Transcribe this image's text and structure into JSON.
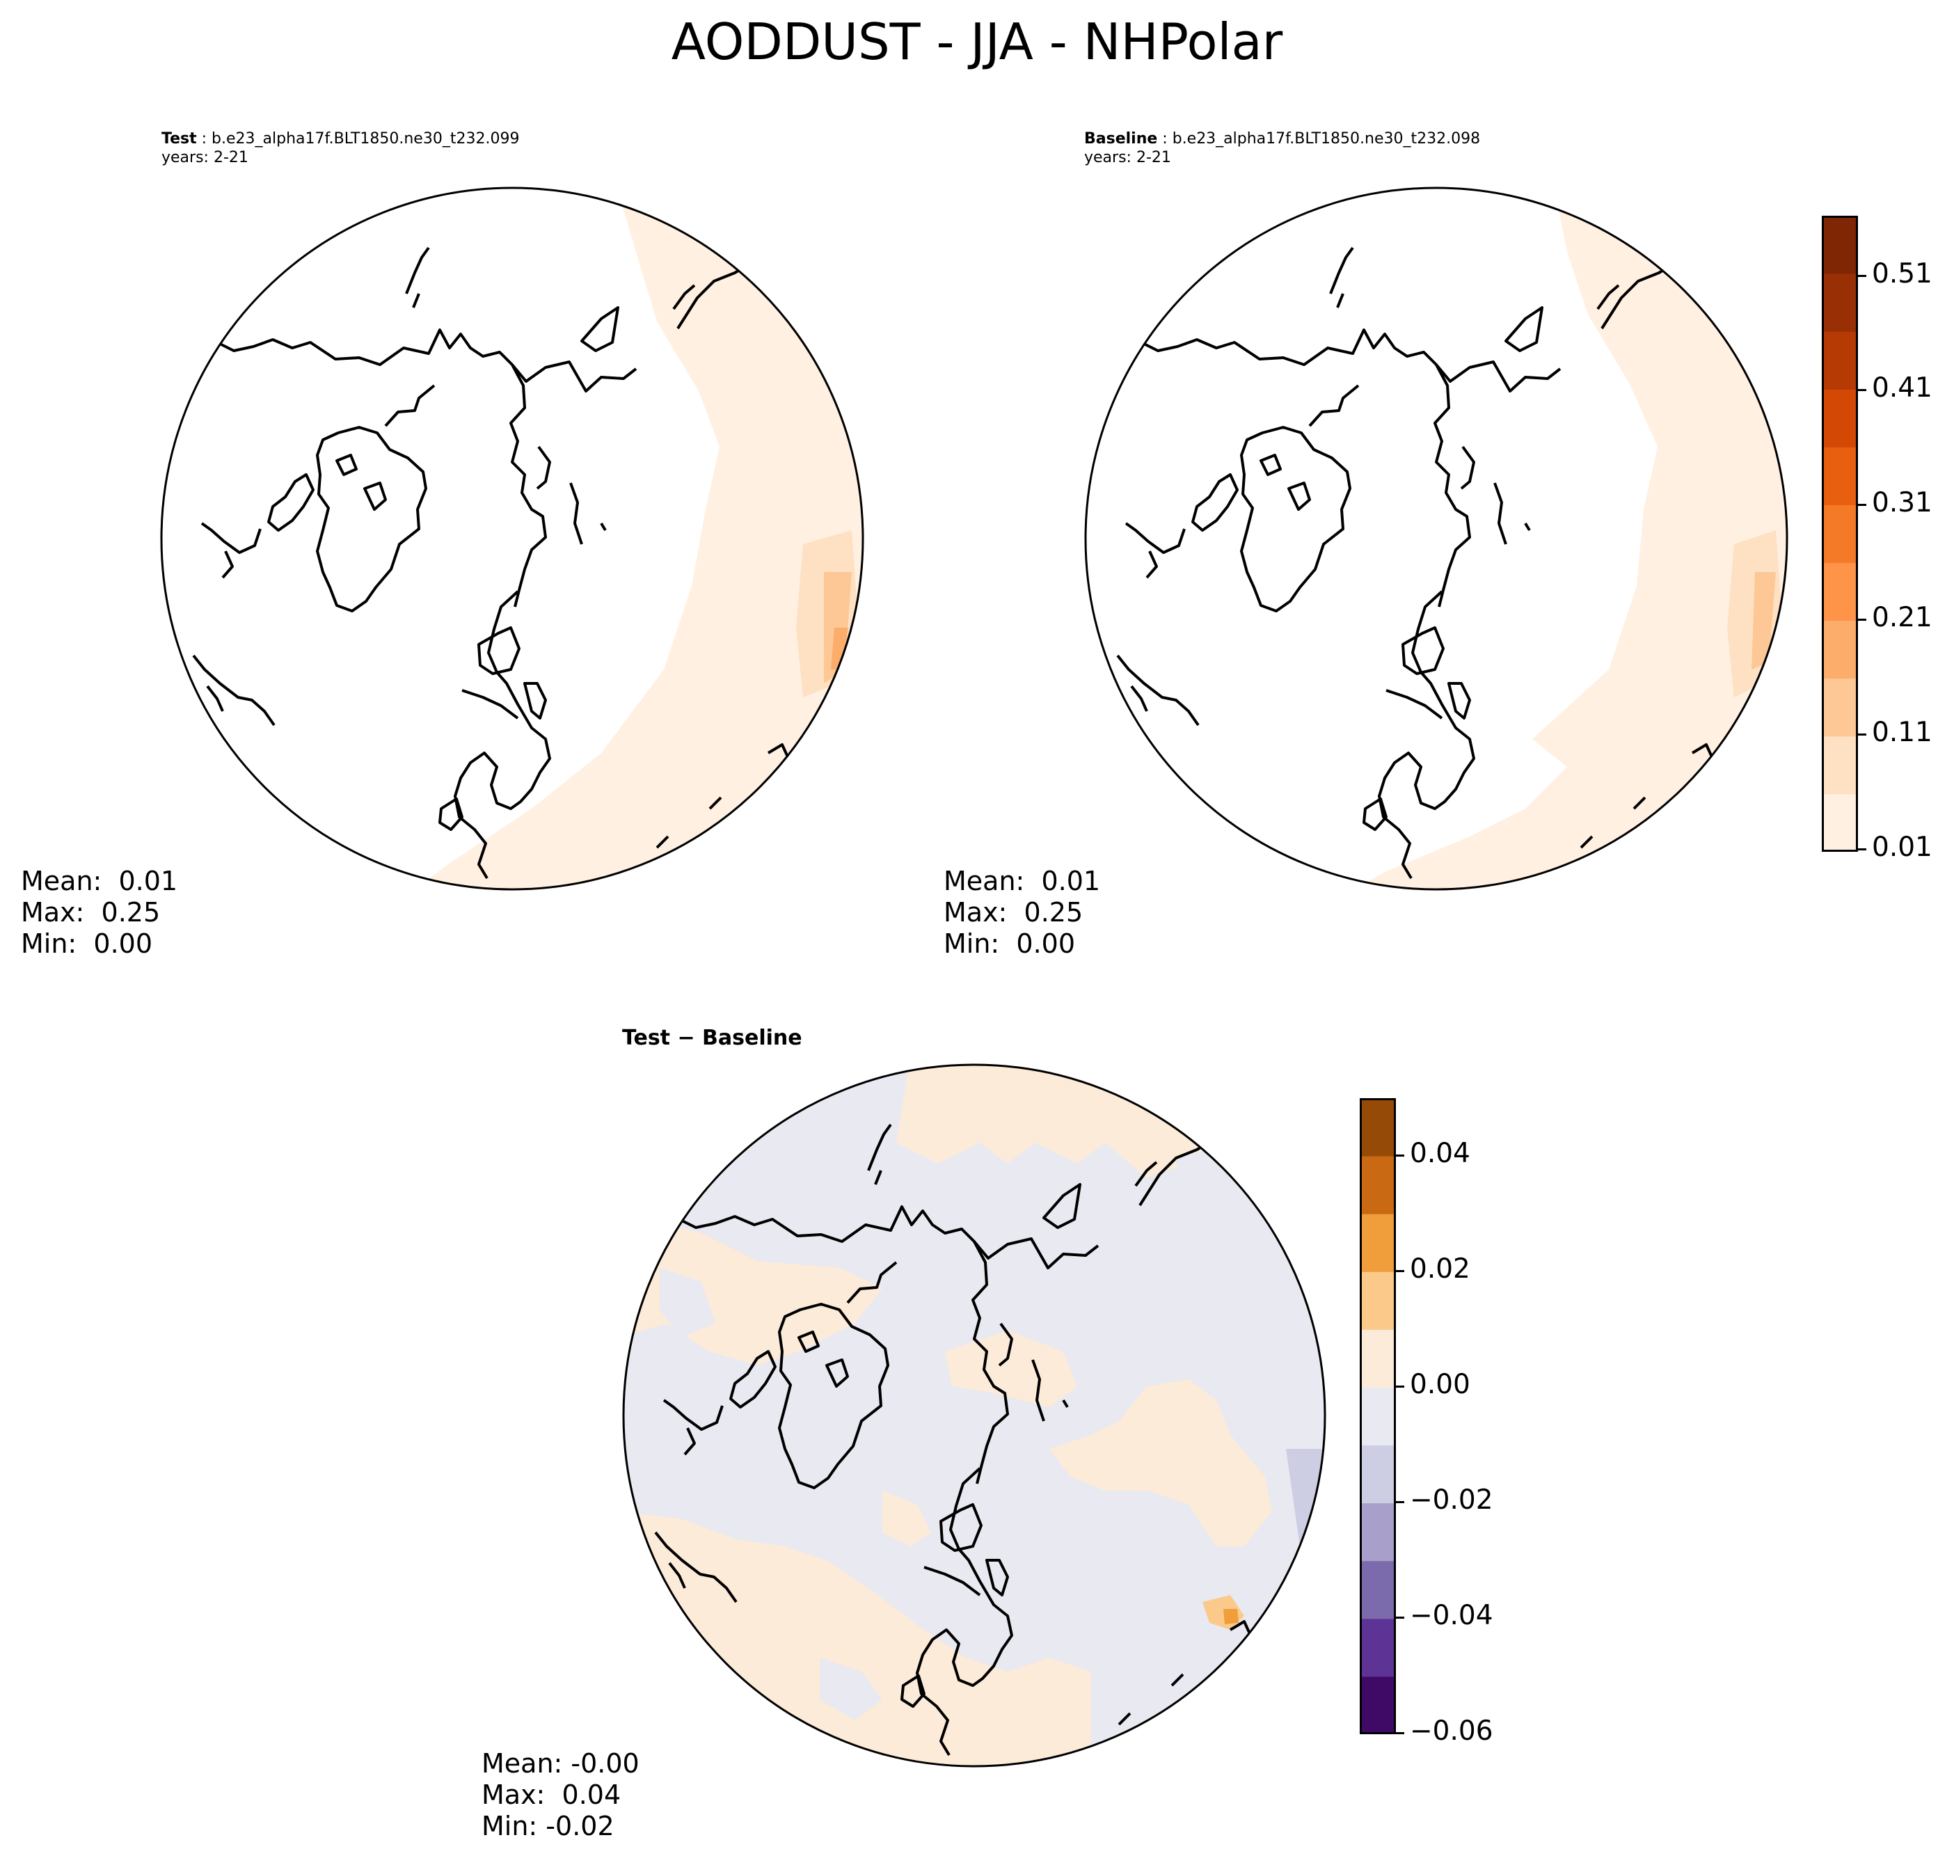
{
  "suptitle": "AODDUST - JJA - NHPolar",
  "panels": {
    "test": {
      "label": "Test",
      "case": " : b.e23_alpha17f.BLT1850.ne30_t232.099",
      "years": "years: 2-21",
      "stats": {
        "mean": "Mean:  0.01",
        "max": "Max:  0.25",
        "min": "Min:  0.00"
      }
    },
    "baseline": {
      "label": "Baseline",
      "case": " : b.e23_alpha17f.BLT1850.ne30_t232.098",
      "years": "years: 2-21",
      "stats": {
        "mean": "Mean:  0.01",
        "max": "Max:  0.25",
        "min": "Min:  0.00"
      }
    },
    "diff": {
      "title": "Test − Baseline",
      "stats": {
        "mean": "Mean: -0.00",
        "max": "Max:  0.04",
        "min": "Min: -0.02"
      }
    }
  },
  "colorbars": {
    "main": {
      "ticks": [
        "0.51",
        "0.41",
        "0.31",
        "0.21",
        "0.11",
        "0.01"
      ],
      "colors": [
        "#fff0e2",
        "#fee0c3",
        "#fdc895",
        "#fdad6b",
        "#fd9447",
        "#f57a28",
        "#e75f0f",
        "#d44806",
        "#b63a04",
        "#993005",
        "#7f2704"
      ]
    },
    "diff": {
      "ticks": [
        "0.04",
        "0.02",
        "0.00",
        "−0.02",
        "−0.04",
        "−0.06"
      ],
      "colors": [
        "#3f0a66",
        "#5d3496",
        "#7b6aac",
        "#a8a0cb",
        "#cdcde3",
        "#e9e9f1",
        "#fcebd8",
        "#fbca8b",
        "#ef9e3b",
        "#c96913",
        "#954b07"
      ]
    }
  }
}
